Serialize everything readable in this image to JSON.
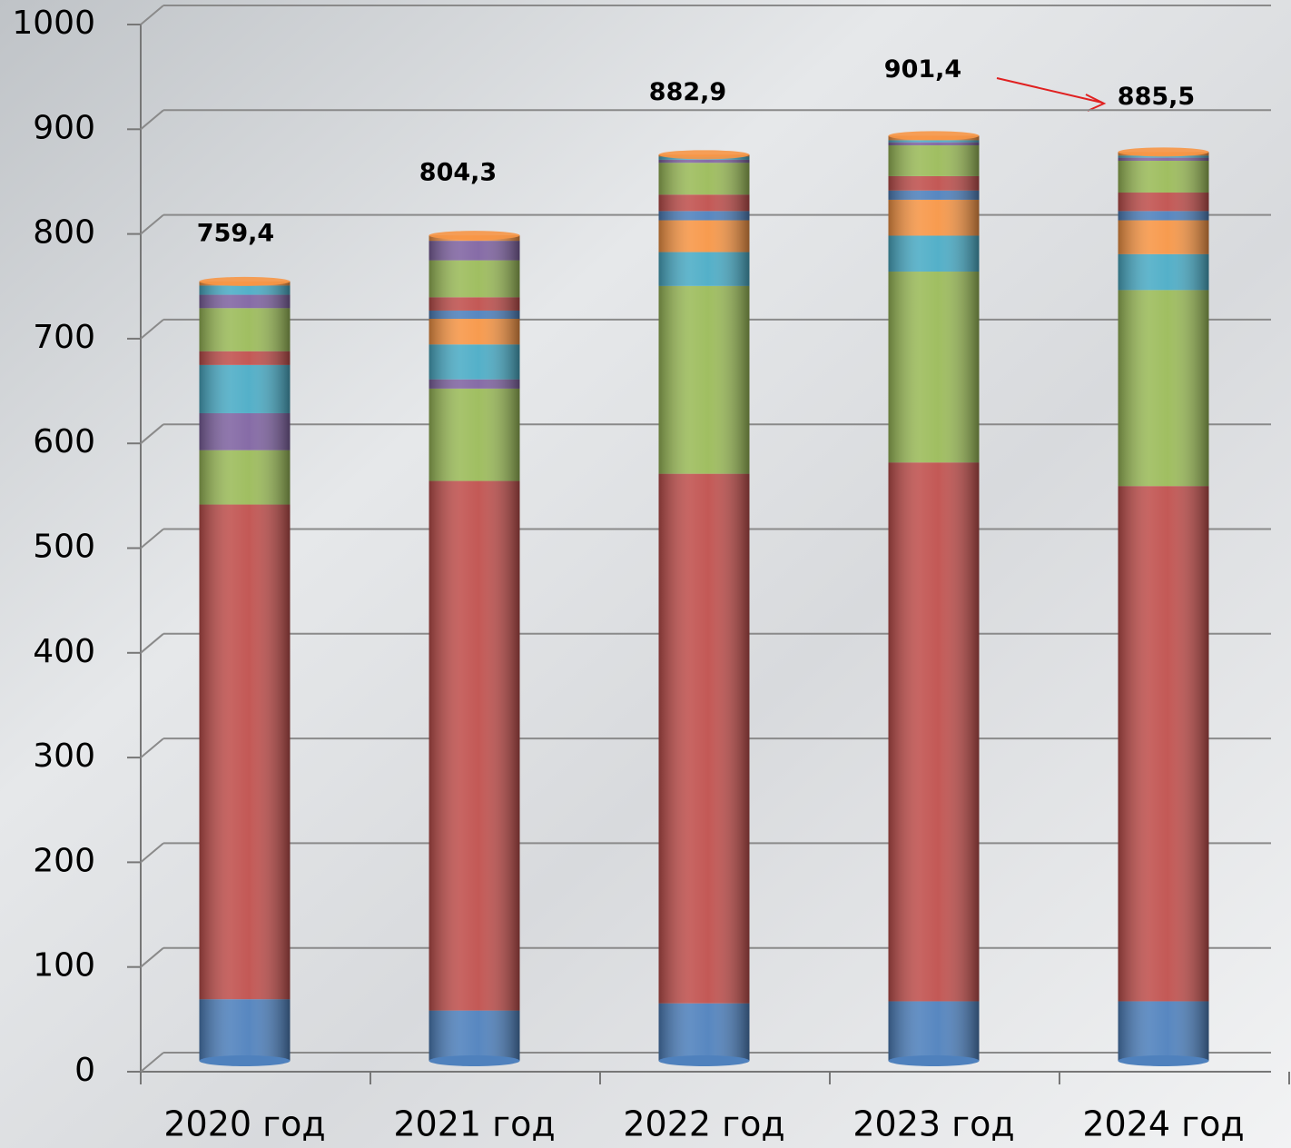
{
  "chart_data": {
    "type": "stacked_bar",
    "categories": [
      "2020 год",
      "2021 год",
      "2022 год",
      "2023 год",
      "2024 год"
    ],
    "series": [
      {
        "color": "#4f81bd",
        "values": [
          60,
          49,
          56,
          58,
          58
        ]
      },
      {
        "color": "#c0504d",
        "values": [
          482,
          516,
          516,
          525,
          502
        ]
      },
      {
        "color": "#9bbb59",
        "values": [
          53,
          90,
          183,
          186,
          191
        ]
      },
      {
        "color": "#8064a2",
        "values": [
          36,
          9,
          0,
          0,
          0
        ]
      },
      {
        "color": "#4bacc6",
        "values": [
          47,
          34,
          33,
          35,
          35
        ]
      },
      {
        "color": "#f79646",
        "values": [
          0,
          25,
          31,
          35,
          33
        ]
      },
      {
        "color": "#4f81bd",
        "values": [
          0,
          8,
          9,
          9,
          9
        ]
      },
      {
        "color": "#c0504d",
        "values": [
          13.4,
          13,
          16,
          14,
          18
        ]
      },
      {
        "color": "#9bbb59",
        "values": [
          42,
          36,
          31,
          30,
          31
        ]
      },
      {
        "color": "#8064a2",
        "values": [
          13,
          19,
          3,
          3,
          3
        ]
      },
      {
        "color": "#4bacc6",
        "values": [
          9,
          0,
          3,
          2,
          2
        ]
      },
      {
        "color": "#f79646",
        "values": [
          4,
          5.3,
          1.9,
          4.4,
          3.5
        ]
      }
    ],
    "totals": [
      759.4,
      804.3,
      882.9,
      901.4,
      885.5
    ],
    "value_labels": [
      "759,4",
      "804,3",
      "882,9",
      "901,4",
      "885,5"
    ],
    "ylim": [
      0,
      1000
    ],
    "yticks": [
      0,
      100,
      200,
      300,
      400,
      500,
      600,
      700,
      800,
      900,
      1000
    ],
    "grid": true
  }
}
